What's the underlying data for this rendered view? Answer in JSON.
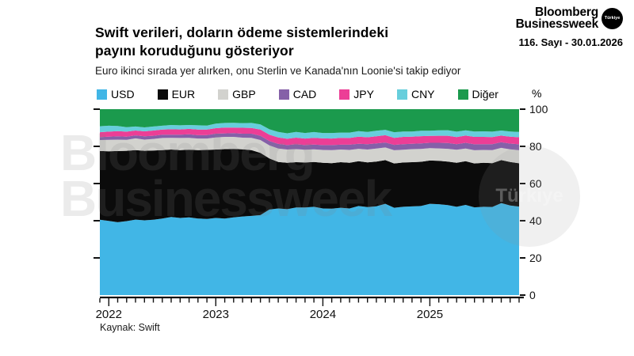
{
  "header": {
    "title_line1": "Swift verileri, doların ödeme sistemlerindeki",
    "title_line2": "payını koruduğunu gösteriyor",
    "subtitle": "Euro ikinci sırada yer alırken, onu Sterlin ve Kanada'nın Loonie'si takip ediyor",
    "brand": {
      "line1": "Bloomberg",
      "line2": "Businessweek",
      "badge": "Türkiye",
      "issue": "116. Sayı - 30.01.2026"
    }
  },
  "watermark": {
    "line1": "Bloomberg",
    "line2": "Businessweek",
    "badge": "Türkiye"
  },
  "source": "Kaynak: Swift",
  "chart_data": {
    "type": "area",
    "stacked": true,
    "unit": "%",
    "y_axis_label": "%",
    "ylim": [
      0,
      100
    ],
    "y_ticks": [
      0,
      20,
      40,
      60,
      80,
      100
    ],
    "grid": false,
    "legend_position": "top",
    "x_start": "2021-12",
    "x_end": "2025-11",
    "x_frequency": "monthly",
    "x_tick_labels": [
      "2022",
      "2023",
      "2024",
      "2025"
    ],
    "series": [
      {
        "name": "USD",
        "color": "#41B6E6",
        "values": [
          40.5,
          39.9,
          39.2,
          39.8,
          40.6,
          40.2,
          40.5,
          41.2,
          42.0,
          41.5,
          41.8,
          41.2,
          41.0,
          41.5,
          41.2,
          41.8,
          42.3,
          42.6,
          43.0,
          46.0,
          46.6,
          46.2,
          47.1,
          47.1,
          47.5,
          46.6,
          46.5,
          47.0,
          46.6,
          47.9,
          47.3,
          47.8,
          49.1,
          47.0,
          47.5,
          47.7,
          47.9,
          49.1,
          48.9,
          48.4,
          47.5,
          48.5,
          47.2,
          47.5,
          47.4,
          49.5,
          48.2,
          47.6
        ]
      },
      {
        "name": "EUR",
        "color": "#0b0b0b",
        "values": [
          37.0,
          37.4,
          38.3,
          37.8,
          37.4,
          37.4,
          37.3,
          36.8,
          36.3,
          36.5,
          36.4,
          36.8,
          37.1,
          36.8,
          37.3,
          36.8,
          36.1,
          35.4,
          33.5,
          27.5,
          25.0,
          25.0,
          24.4,
          24.2,
          24.1,
          24.6,
          24.5,
          24.5,
          24.6,
          24.1,
          24.1,
          24.0,
          23.5,
          23.8,
          23.8,
          23.8,
          23.8,
          23.3,
          23.3,
          23.4,
          23.7,
          23.5,
          23.6,
          23.7,
          23.6,
          23.1,
          23.4,
          23.3
        ]
      },
      {
        "name": "GBP",
        "color": "#D2D2CE",
        "values": [
          5.9,
          6.2,
          6.1,
          5.9,
          6.3,
          6.0,
          6.2,
          6.5,
          6.3,
          6.5,
          6.4,
          6.2,
          6.1,
          6.5,
          6.6,
          6.5,
          6.3,
          6.6,
          6.9,
          7.0,
          7.2,
          7.1,
          7.0,
          6.9,
          6.8,
          6.9,
          7.0,
          6.8,
          6.9,
          6.7,
          6.9,
          7.0,
          6.8,
          7.1,
          6.9,
          7.0,
          6.9,
          6.6,
          6.7,
          6.9,
          7.0,
          6.8,
          7.1,
          6.9,
          7.0,
          6.6,
          6.8,
          7.0
        ]
      },
      {
        "name": "CAD",
        "color": "#8560A8",
        "values": [
          1.6,
          1.7,
          1.8,
          1.7,
          1.6,
          1.8,
          1.7,
          1.8,
          1.7,
          1.8,
          1.9,
          1.8,
          1.9,
          2.0,
          1.9,
          2.0,
          2.1,
          2.2,
          2.3,
          2.4,
          2.5,
          2.4,
          2.6,
          2.5,
          2.6,
          2.6,
          2.7,
          2.6,
          2.8,
          2.7,
          2.9,
          2.8,
          2.7,
          2.9,
          3.0,
          2.9,
          3.0,
          2.9,
          3.0,
          3.1,
          3.0,
          3.1,
          3.2,
          3.1,
          3.2,
          3.0,
          3.1,
          3.2
        ]
      },
      {
        "name": "JPY",
        "color": "#EC3E96",
        "values": [
          2.6,
          2.7,
          2.8,
          2.7,
          2.6,
          2.7,
          2.8,
          2.7,
          2.9,
          2.8,
          2.9,
          3.0,
          2.9,
          3.0,
          3.1,
          3.0,
          3.2,
          3.1,
          3.3,
          3.4,
          3.5,
          3.4,
          3.6,
          3.5,
          3.6,
          3.6,
          3.5,
          3.7,
          3.6,
          3.8,
          3.7,
          3.8,
          3.9,
          3.8,
          3.9,
          3.8,
          3.9,
          3.7,
          3.8,
          3.9,
          3.8,
          3.9,
          4.0,
          3.9,
          3.8,
          3.6,
          3.7,
          3.8
        ]
      },
      {
        "name": "CNY",
        "color": "#67CEDC",
        "values": [
          3.2,
          3.2,
          2.8,
          2.4,
          2.2,
          2.1,
          2.2,
          2.1,
          2.3,
          2.2,
          2.1,
          2.3,
          2.2,
          2.4,
          2.5,
          2.6,
          2.5,
          2.7,
          2.8,
          2.9,
          3.0,
          2.9,
          3.1,
          3.0,
          3.1,
          2.9,
          3.0,
          2.8,
          2.9,
          3.0,
          2.9,
          3.0,
          2.9,
          3.0,
          2.9,
          2.8,
          2.9,
          2.8,
          2.9,
          3.0,
          2.9,
          2.8,
          2.9,
          3.0,
          2.9,
          2.7,
          2.8,
          2.9
        ]
      },
      {
        "name": "Diğer",
        "color": "#1B9A4D",
        "values": [
          9.2,
          8.9,
          9.0,
          9.7,
          9.3,
          9.8,
          9.3,
          8.9,
          8.5,
          8.7,
          8.5,
          8.7,
          8.8,
          7.8,
          7.4,
          7.3,
          7.5,
          7.4,
          8.2,
          10.8,
          12.2,
          13.0,
          12.2,
          12.8,
          12.3,
          12.8,
          12.8,
          12.6,
          12.6,
          11.8,
          12.2,
          11.6,
          11.1,
          12.4,
          12.0,
          12.0,
          11.6,
          11.6,
          11.4,
          11.3,
          12.1,
          11.4,
          12.0,
          11.9,
          12.1,
          11.5,
          12.0,
          12.2
        ]
      }
    ]
  }
}
